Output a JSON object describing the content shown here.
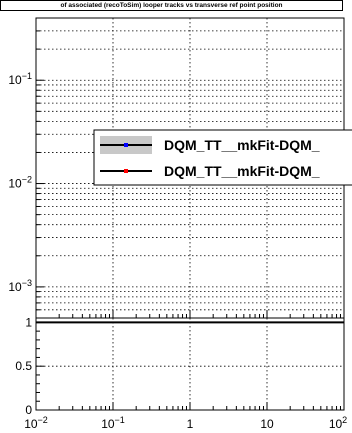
{
  "title": "of associated (recoToSim) looper tracks vs transverse ref point position",
  "colors": {
    "series1_line": "#000000",
    "series1_marker": "#0000ff",
    "series1_band": "#c8c8c8",
    "series2_line": "#000000",
    "series2_marker": "#ff0000"
  },
  "chart_data": [
    {
      "type": "line",
      "panel": "top",
      "yscale": "log",
      "xscale": "log",
      "xlim": [
        0.01,
        100
      ],
      "ylim": [
        0.0005,
        0.4
      ],
      "ytick_labels": [
        "10^-3",
        "10^-2",
        "10^-1"
      ],
      "grid": true,
      "legend_position": "top-right",
      "series": [
        {
          "name": "DQM_TT__mkFit-DQM_",
          "values": []
        },
        {
          "name": "DQM_TT__mkFit-DQM_",
          "values": []
        }
      ]
    },
    {
      "type": "line",
      "panel": "ratio",
      "xscale": "log",
      "xlim": [
        0.01,
        100
      ],
      "ylim": [
        0,
        1.05
      ],
      "ytick_labels": [
        "0",
        "0.5",
        "1"
      ],
      "xtick_labels": [
        "10^-2",
        "10^-1",
        "1",
        "10",
        "10^2"
      ],
      "grid": true,
      "series": [
        {
          "x": [
            0.01,
            100
          ],
          "values": [
            1,
            1
          ]
        }
      ]
    }
  ]
}
